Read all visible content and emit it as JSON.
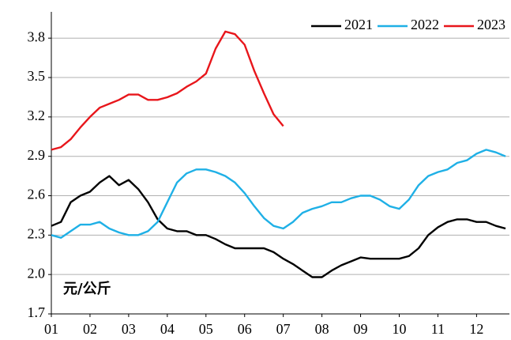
{
  "chart_data": {
    "type": "line",
    "annotation": "元/公斤",
    "xlim": [
      1,
      12.85
    ],
    "xticks": [
      {
        "value": 1,
        "label": "01"
      },
      {
        "value": 2,
        "label": "02"
      },
      {
        "value": 3,
        "label": "03"
      },
      {
        "value": 4,
        "label": "04"
      },
      {
        "value": 5,
        "label": "05"
      },
      {
        "value": 6,
        "label": "06"
      },
      {
        "value": 7,
        "label": "07"
      },
      {
        "value": 8,
        "label": "08"
      },
      {
        "value": 9,
        "label": "09"
      },
      {
        "value": 10,
        "label": "10"
      },
      {
        "value": 11,
        "label": "11"
      },
      {
        "value": 12,
        "label": "12"
      }
    ],
    "ylim": [
      1.7,
      4.0
    ],
    "yticks": [
      1.7,
      {
        "value": 2,
        "label": "2.0"
      },
      2.3,
      2.6,
      2.9,
      3.2,
      3.5,
      3.8
    ],
    "grid": true,
    "legend": "top-right",
    "series": [
      {
        "name": "2021",
        "color": "#000000",
        "x": [
          1,
          1.25,
          1.5,
          1.75,
          2,
          2.25,
          2.5,
          2.75,
          3,
          3.25,
          3.5,
          3.75,
          4,
          4.25,
          4.5,
          4.75,
          5,
          5.25,
          5.5,
          5.75,
          6,
          6.25,
          6.5,
          6.75,
          7,
          7.25,
          7.5,
          7.75,
          8,
          8.25,
          8.5,
          8.75,
          9,
          9.25,
          9.5,
          9.75,
          10,
          10.25,
          10.5,
          10.75,
          11,
          11.25,
          11.5,
          11.75,
          12,
          12.25,
          12.5,
          12.75
        ],
        "values": [
          2.37,
          2.4,
          2.55,
          2.6,
          2.63,
          2.7,
          2.75,
          2.68,
          2.72,
          2.65,
          2.55,
          2.42,
          2.35,
          2.33,
          2.33,
          2.3,
          2.3,
          2.27,
          2.23,
          2.2,
          2.2,
          2.2,
          2.2,
          2.17,
          2.12,
          2.08,
          2.03,
          1.98,
          1.98,
          2.03,
          2.07,
          2.1,
          2.13,
          2.12,
          2.12,
          2.12,
          2.12,
          2.14,
          2.2,
          2.3,
          2.36,
          2.4,
          2.42,
          2.42,
          2.4,
          2.4,
          2.37,
          2.35
        ]
      },
      {
        "name": "2022",
        "color": "#1fb0e6",
        "x": [
          1,
          1.25,
          1.5,
          1.75,
          2,
          2.25,
          2.5,
          2.75,
          3,
          3.25,
          3.5,
          3.75,
          4,
          4.25,
          4.5,
          4.75,
          5,
          5.25,
          5.5,
          5.75,
          6,
          6.25,
          6.5,
          6.75,
          7,
          7.25,
          7.5,
          7.75,
          8,
          8.25,
          8.5,
          8.75,
          9,
          9.25,
          9.5,
          9.75,
          10,
          10.25,
          10.5,
          10.75,
          11,
          11.25,
          11.5,
          11.75,
          12,
          12.25,
          12.5,
          12.75
        ],
        "values": [
          2.3,
          2.28,
          2.33,
          2.38,
          2.38,
          2.4,
          2.35,
          2.32,
          2.3,
          2.3,
          2.33,
          2.4,
          2.55,
          2.7,
          2.77,
          2.8,
          2.8,
          2.78,
          2.75,
          2.7,
          2.62,
          2.52,
          2.43,
          2.37,
          2.35,
          2.4,
          2.47,
          2.5,
          2.52,
          2.55,
          2.55,
          2.58,
          2.6,
          2.6,
          2.57,
          2.52,
          2.5,
          2.57,
          2.68,
          2.75,
          2.78,
          2.8,
          2.85,
          2.87,
          2.92,
          2.95,
          2.93,
          2.9
        ]
      },
      {
        "name": "2023",
        "color": "#e8161b",
        "x": [
          1,
          1.25,
          1.5,
          1.75,
          2,
          2.25,
          2.5,
          2.75,
          3,
          3.25,
          3.5,
          3.75,
          4,
          4.25,
          4.5,
          4.75,
          5,
          5.25,
          5.5,
          5.75,
          6,
          6.25,
          6.5,
          6.75,
          7
        ],
        "values": [
          2.95,
          2.97,
          3.03,
          3.12,
          3.2,
          3.27,
          3.3,
          3.33,
          3.37,
          3.37,
          3.33,
          3.33,
          3.35,
          3.38,
          3.43,
          3.47,
          3.53,
          3.72,
          3.85,
          3.83,
          3.75,
          3.55,
          3.38,
          3.22,
          3.13
        ]
      }
    ]
  }
}
